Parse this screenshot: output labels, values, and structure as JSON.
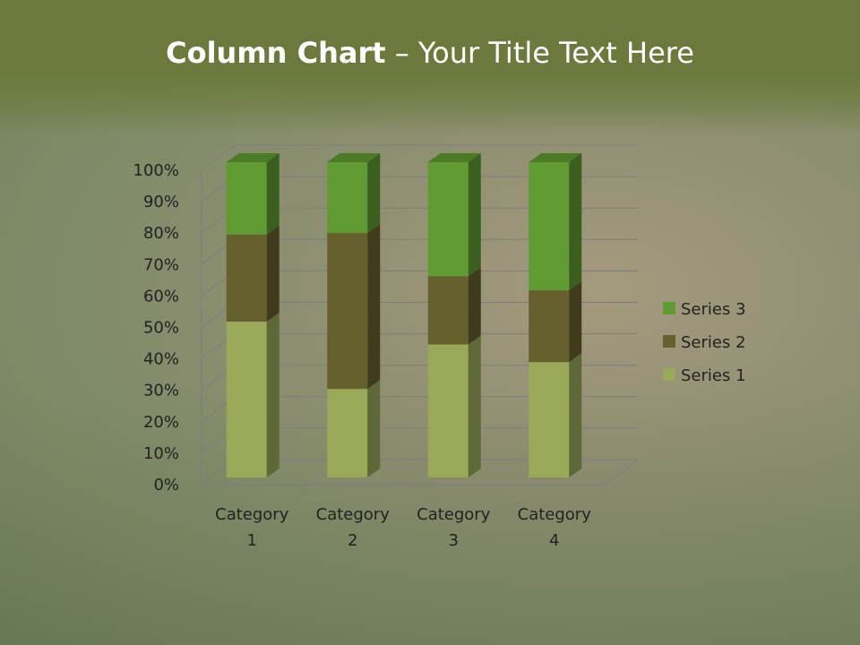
{
  "slide": {
    "title_bold": "Column Chart",
    "title_rest": " – Your Title Text Here"
  },
  "chart_data": {
    "type": "bar",
    "stacking": "percent",
    "3d": true,
    "categories": [
      "Category 1",
      "Category 2",
      "Category 3",
      "Category 4"
    ],
    "series": [
      {
        "name": "Series 1",
        "values": [
          4.3,
          2.5,
          3.5,
          4.5
        ],
        "color": "#9aa85a"
      },
      {
        "name": "Series 2",
        "values": [
          2.4,
          4.4,
          1.8,
          2.8
        ],
        "color": "#665f2e"
      },
      {
        "name": "Series 3",
        "values": [
          2,
          2,
          3,
          5
        ],
        "color": "#5f9a32"
      }
    ],
    "yticks": [
      "0%",
      "10%",
      "20%",
      "30%",
      "40%",
      "50%",
      "60%",
      "70%",
      "80%",
      "90%",
      "100%"
    ],
    "ylim": [
      0,
      100
    ],
    "grid": true,
    "legend": "right"
  }
}
